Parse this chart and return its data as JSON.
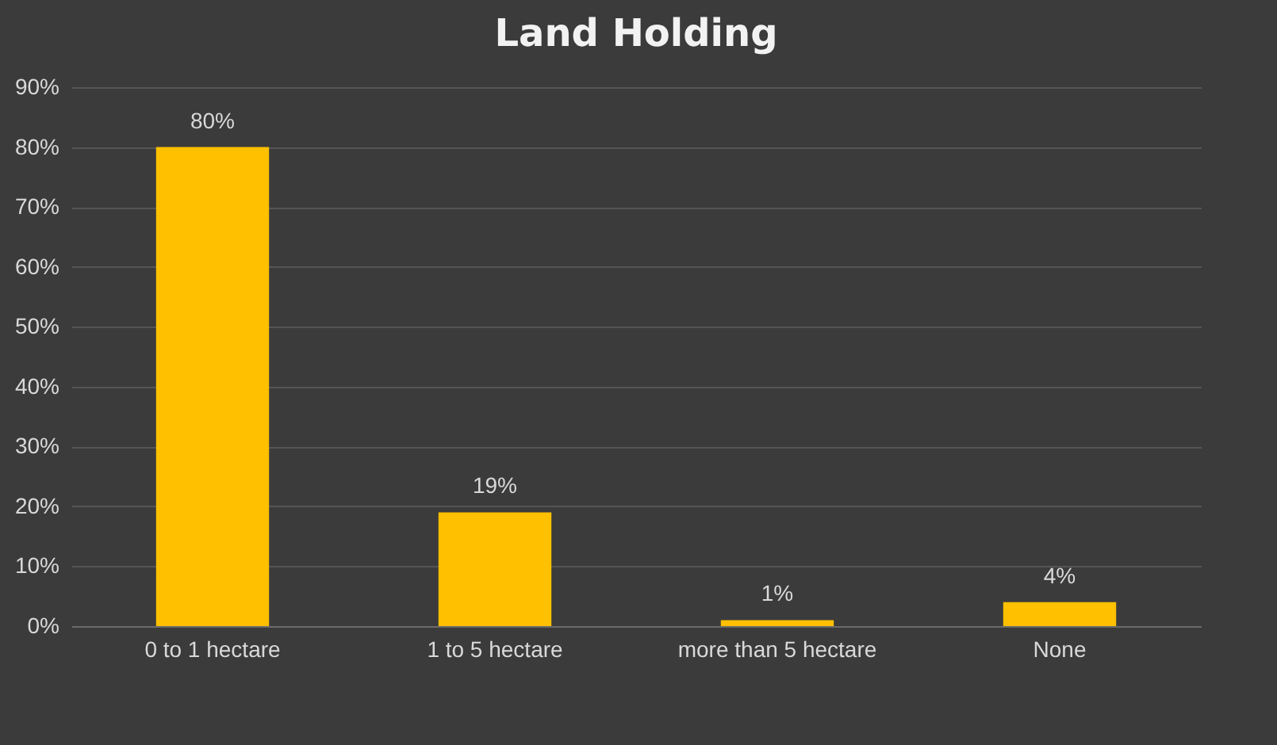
{
  "chart_data": {
    "type": "bar",
    "title": "Land Holding",
    "categories": [
      "0 to 1 hectare",
      "1 to 5 hectare",
      "more than 5 hectare",
      "None"
    ],
    "values": [
      80,
      19,
      1,
      4
    ],
    "value_labels": [
      "80%",
      "19%",
      "1%",
      "4%"
    ],
    "color": "#ffc000",
    "ylim": [
      0,
      90
    ],
    "yticks": [
      {
        "value": 0,
        "label": "0%"
      },
      {
        "value": 10,
        "label": "10%"
      },
      {
        "value": 20,
        "label": "20%"
      },
      {
        "value": 30,
        "label": "30%"
      },
      {
        "value": 40,
        "label": "40%"
      },
      {
        "value": 50,
        "label": "50%"
      },
      {
        "value": 60,
        "label": "60%"
      },
      {
        "value": 70,
        "label": "70%"
      },
      {
        "value": 80,
        "label": "80%"
      },
      {
        "value": 90,
        "label": "90%"
      }
    ],
    "grid": "y"
  }
}
